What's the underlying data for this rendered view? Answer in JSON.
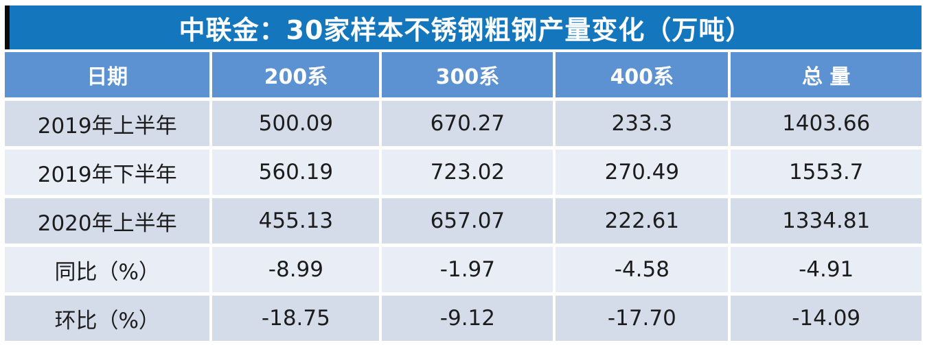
{
  "title": "中联金：30家样本不锈钢粗钢产量变化（万吨）",
  "colors": {
    "title_bg": "#1477BD",
    "header_bg": "#5C92D2",
    "row_odd_bg": "#D4DBE9",
    "row_even_bg": "#E9EEF6",
    "text_dark": "#1c1c1c",
    "text_light": "#ffffff"
  },
  "chart_data": {
    "type": "table",
    "title": "中联金：30家样本不锈钢粗钢产量变化（万吨）",
    "unit": "万吨",
    "columns": [
      "日期",
      "200系",
      "300系",
      "400系",
      "总 量"
    ],
    "rows": [
      [
        "2019年上半年",
        "500.09",
        "670.27",
        "233.3",
        "1403.66"
      ],
      [
        "2019年下半年",
        "560.19",
        "723.02",
        "270.49",
        "1553.7"
      ],
      [
        "2020年上半年",
        "455.13",
        "657.07",
        "222.61",
        "1334.81"
      ],
      [
        "同比（%）",
        "-8.99",
        "-1.97",
        "-4.58",
        "-4.91"
      ],
      [
        "环比（%）",
        "-18.75",
        "-9.12",
        "-17.70",
        "-14.09"
      ]
    ]
  }
}
